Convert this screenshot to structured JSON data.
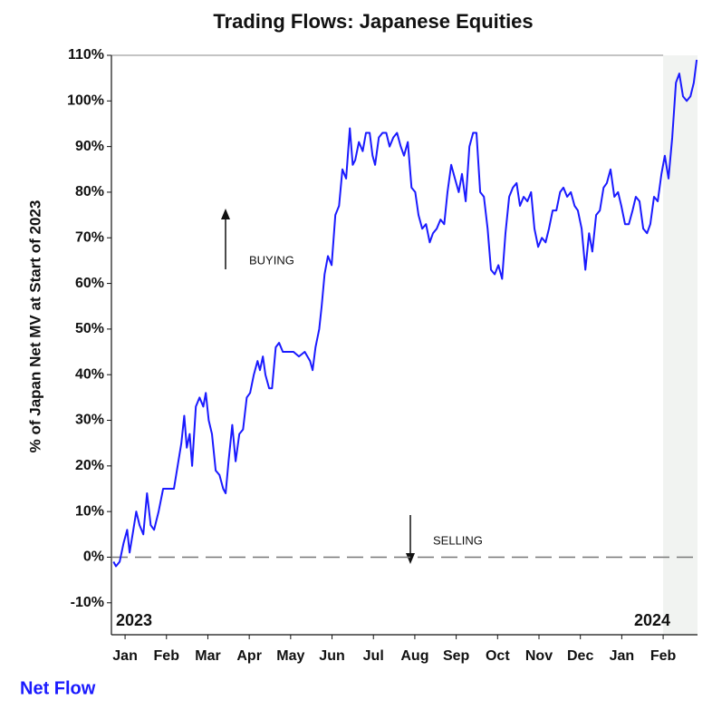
{
  "chart_data": {
    "type": "line",
    "title": "Trading Flows: Japanese Equities",
    "y_label": "% of Japan Net MV at Start of 2023",
    "annotations": [
      "BUYING",
      "SELLING",
      "2023",
      "2024"
    ],
    "xlim": [
      0.17,
      14.33
    ],
    "ylim": [
      -17,
      110
    ],
    "xticks": [
      {
        "value": 0.5,
        "label": "Jan"
      },
      {
        "value": 1.5,
        "label": "Feb"
      },
      {
        "value": 2.5,
        "label": "Mar"
      },
      {
        "value": 3.5,
        "label": "Apr"
      },
      {
        "value": 4.5,
        "label": "May"
      },
      {
        "value": 5.5,
        "label": "Jun"
      },
      {
        "value": 6.5,
        "label": "Jul"
      },
      {
        "value": 7.5,
        "label": "Aug"
      },
      {
        "value": 8.5,
        "label": "Sep"
      },
      {
        "value": 9.5,
        "label": "Oct"
      },
      {
        "value": 10.5,
        "label": "Nov"
      },
      {
        "value": 11.5,
        "label": "Dec"
      },
      {
        "value": 12.5,
        "label": "Jan"
      },
      {
        "value": 13.5,
        "label": "Feb"
      }
    ],
    "yticks": [
      {
        "value": 110,
        "label": "110%"
      },
      {
        "value": 100,
        "label": "100%"
      },
      {
        "value": 90,
        "label": "90%"
      },
      {
        "value": 80,
        "label": "80%"
      },
      {
        "value": 70,
        "label": "70%"
      },
      {
        "value": 60,
        "label": "60%"
      },
      {
        "value": 50,
        "label": "50%"
      },
      {
        "value": 40,
        "label": "40%"
      },
      {
        "value": 30,
        "label": "30%"
      },
      {
        "value": 20,
        "label": "20%"
      },
      {
        "value": 10,
        "label": "10%"
      },
      {
        "value": 0,
        "label": "0%"
      },
      {
        "value": -10,
        "label": "-10%"
      }
    ],
    "reference_line": 0,
    "highlight_x": [
      13.5,
      14.33
    ],
    "x": [
      0.22,
      0.28,
      0.37,
      0.46,
      0.55,
      0.61,
      0.7,
      0.77,
      0.85,
      0.94,
      1.03,
      1.12,
      1.2,
      1.31,
      1.42,
      1.55,
      1.68,
      1.77,
      1.86,
      1.93,
      1.99,
      2.06,
      2.12,
      2.21,
      2.3,
      2.39,
      2.45,
      2.52,
      2.6,
      2.69,
      2.78,
      2.87,
      2.93,
      3.0,
      3.09,
      3.17,
      3.26,
      3.35,
      3.44,
      3.52,
      3.61,
      3.7,
      3.76,
      3.83,
      3.89,
      3.98,
      4.05,
      4.14,
      4.22,
      4.31,
      4.44,
      4.57,
      4.7,
      4.84,
      4.97,
      5.03,
      5.1,
      5.19,
      5.25,
      5.32,
      5.4,
      5.49,
      5.58,
      5.67,
      5.75,
      5.84,
      5.93,
      6.0,
      6.06,
      6.15,
      6.24,
      6.32,
      6.41,
      6.48,
      6.54,
      6.63,
      6.72,
      6.81,
      6.89,
      6.98,
      7.07,
      7.16,
      7.24,
      7.33,
      7.42,
      7.51,
      7.59,
      7.68,
      7.77,
      7.86,
      7.94,
      8.03,
      8.12,
      8.21,
      8.29,
      8.38,
      8.47,
      8.56,
      8.64,
      8.73,
      8.82,
      8.91,
      8.99,
      9.08,
      9.17,
      9.26,
      9.34,
      9.43,
      9.52,
      9.61,
      9.69,
      9.78,
      9.87,
      9.96,
      10.04,
      10.13,
      10.22,
      10.31,
      10.39,
      10.48,
      10.57,
      10.66,
      10.74,
      10.83,
      10.92,
      11.01,
      11.09,
      11.18,
      11.27,
      11.36,
      11.44,
      11.53,
      11.62,
      11.71,
      11.79,
      11.88,
      11.97,
      12.06,
      12.14,
      12.23,
      12.32,
      12.41,
      12.49,
      12.58,
      12.67,
      12.76,
      12.84,
      12.93,
      13.02,
      13.11,
      13.19,
      13.28,
      13.37,
      13.46,
      13.54,
      13.63,
      13.72,
      13.81,
      13.89,
      13.98,
      14.07,
      14.16,
      14.24,
      14.31
    ],
    "series": [
      {
        "name": "Net Flow",
        "color": "#1a1aff",
        "values": [
          -1,
          -2,
          -1,
          3,
          6,
          1,
          6,
          10,
          7,
          5,
          14,
          7,
          6,
          10,
          15,
          15,
          15,
          20,
          25,
          31,
          24,
          27,
          20,
          33,
          35,
          33,
          36,
          30,
          27,
          19,
          18,
          15,
          14,
          21,
          29,
          21,
          27,
          28,
          35,
          36,
          40,
          43,
          41,
          44,
          40,
          37,
          37,
          46,
          47,
          45,
          45,
          45,
          44,
          45,
          43,
          41,
          46,
          50,
          55,
          62,
          66,
          64,
          75,
          77,
          85,
          83,
          94,
          86,
          87,
          91,
          89,
          93,
          93,
          88,
          86,
          92,
          93,
          93,
          90,
          92,
          93,
          90,
          88,
          91,
          81,
          80,
          75,
          72,
          73,
          69,
          71,
          72,
          74,
          73,
          80,
          86,
          83,
          80,
          84,
          78,
          90,
          93,
          93,
          80,
          79,
          72,
          63,
          62,
          64,
          61,
          71,
          79,
          81,
          82,
          77,
          79,
          78,
          80,
          72,
          68,
          70,
          69,
          72,
          76,
          76,
          80,
          81,
          79,
          80,
          77,
          76,
          72,
          63,
          71,
          67,
          75,
          76,
          81,
          82,
          85,
          79,
          80,
          77,
          73,
          73,
          76,
          79,
          78,
          72,
          71,
          73,
          79,
          78,
          84,
          88,
          83,
          92,
          104,
          106,
          101,
          100,
          101,
          104,
          109
        ]
      }
    ]
  }
}
